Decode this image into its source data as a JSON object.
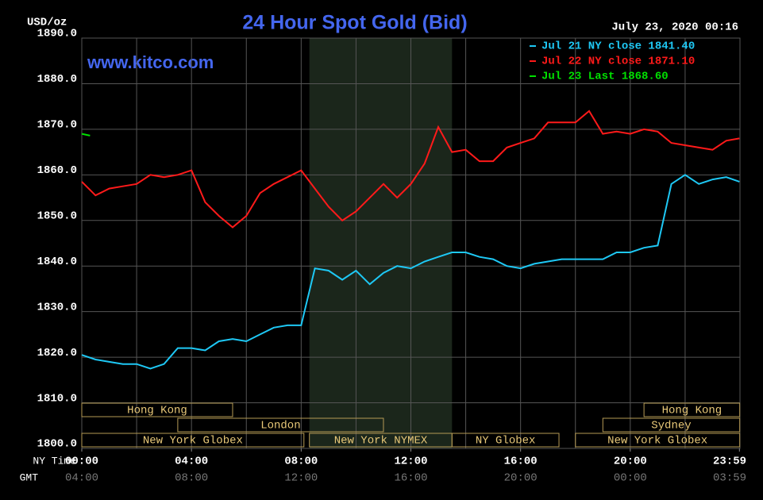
{
  "chart_data": {
    "type": "line",
    "title": "24 Hour Spot Gold (Bid)",
    "unit": "USD/oz",
    "timestamp": "July 23, 2020 00:16",
    "website": "www.kitco.com",
    "x_axis_labels": [
      "NY Time",
      "GMT"
    ],
    "x": [
      0,
      0.5,
      1,
      1.5,
      2,
      2.5,
      3,
      3.5,
      4,
      4.5,
      5,
      5.5,
      6,
      6.5,
      7,
      7.5,
      8,
      8.5,
      9,
      9.5,
      10,
      10.5,
      11,
      11.5,
      12,
      12.5,
      13,
      13.5,
      14,
      14.5,
      15,
      15.5,
      16,
      16.5,
      17,
      17.5,
      18,
      18.5,
      19,
      19.5,
      20,
      20.5,
      21,
      21.5,
      22,
      22.5,
      23,
      23.5,
      23.98
    ],
    "series": [
      {
        "name": "Jul 21 NY close 1841.40",
        "color": "#1ec8f5",
        "values": [
          1820.5,
          1819.5,
          1819,
          1818.5,
          1818.5,
          1817.5,
          1818.5,
          1822,
          1822,
          1821.5,
          1823.5,
          1824,
          1823.5,
          1825,
          1826.5,
          1827,
          1827,
          1839.5,
          1839,
          1837,
          1839,
          1836,
          1838.5,
          1840,
          1839.5,
          1841,
          1842,
          1843,
          1843,
          1842,
          1841.5,
          1840,
          1839.5,
          1840.5,
          1841,
          1841.5,
          1841.5,
          1841.5,
          1841.5,
          1843,
          1843,
          1844,
          1844.5,
          1858,
          1860,
          1858,
          1859,
          1859.5,
          1858.5
        ]
      },
      {
        "name": "Jul 22 NY close 1871.10",
        "color": "#ff1a1a",
        "values": [
          1858.5,
          1855.5,
          1857,
          1857.5,
          1858,
          1860,
          1859.5,
          1860,
          1861,
          1854,
          1851,
          1848.5,
          1851,
          1856,
          1858,
          1859.5,
          1861,
          1857,
          1853,
          1850,
          1852,
          1855,
          1858,
          1855,
          1858,
          1862.5,
          1870.5,
          1865,
          1865.5,
          1863,
          1863,
          1866,
          1867,
          1868,
          1871.5,
          1871.5,
          1871.5,
          1874,
          1869,
          1869.5,
          1869,
          1870,
          1869.5,
          1867,
          1866.5,
          1866,
          1865.5,
          1867.5,
          1868
        ]
      },
      {
        "name": "Jul 23 Last 1868.60",
        "color": "#00e000",
        "x": [
          0,
          0.3
        ],
        "values": [
          1869,
          1868.6
        ]
      }
    ],
    "xlim": [
      0,
      24
    ],
    "ylim": [
      1800,
      1890
    ],
    "xticks": [
      {
        "value": 0,
        "label": "00:00"
      },
      {
        "value": 4,
        "label": "04:00"
      },
      {
        "value": 8,
        "label": "08:00"
      },
      {
        "value": 12,
        "label": "12:00"
      },
      {
        "value": 16,
        "label": "16:00"
      },
      {
        "value": 20,
        "label": "20:00"
      },
      {
        "value": 23.98,
        "label": "23:59"
      }
    ],
    "gmt_labels": [
      "04:00",
      "08:00",
      "12:00",
      "16:00",
      "20:00",
      "00:00",
      "03:59"
    ],
    "xgrid": [
      2,
      4,
      6,
      8,
      10,
      12,
      14,
      16,
      18,
      20,
      22
    ],
    "yticks": [
      {
        "value": 1800,
        "label": "1800.0"
      },
      {
        "value": 1810,
        "label": "1810.0"
      },
      {
        "value": 1820,
        "label": "1820.0"
      },
      {
        "value": 1830,
        "label": "1830.0"
      },
      {
        "value": 1840,
        "label": "1840.0"
      },
      {
        "value": 1850,
        "label": "1850.0"
      },
      {
        "value": 1860,
        "label": "1860.0"
      },
      {
        "value": 1870,
        "label": "1870.0"
      },
      {
        "value": 1880,
        "label": "1880.0"
      },
      {
        "value": 1890,
        "label": "1890.0"
      }
    ],
    "grid": true,
    "legend": "top-right",
    "sessions": [
      {
        "label": "Hong Kong",
        "row": 0,
        "start": 0,
        "end": 5.5
      },
      {
        "label": "London",
        "row": 1,
        "start": 3.5,
        "end": 11
      },
      {
        "label": "New York Globex",
        "row": 2,
        "start": 0,
        "end": 8.1
      },
      {
        "label": "New York NYMEX",
        "row": 2,
        "start": 8.3,
        "end": 13.5,
        "shaded": true
      },
      {
        "label": "NY Globex",
        "row": 2,
        "start": 13.5,
        "end": 17.4
      },
      {
        "label": "Hong Kong",
        "row": 0,
        "start": 20.5,
        "end": 23.99
      },
      {
        "label": "Sydney",
        "row": 1,
        "start": 19,
        "end": 23.99
      },
      {
        "label": "New York Globex",
        "row": 2,
        "start": 18,
        "end": 23.99
      }
    ]
  }
}
